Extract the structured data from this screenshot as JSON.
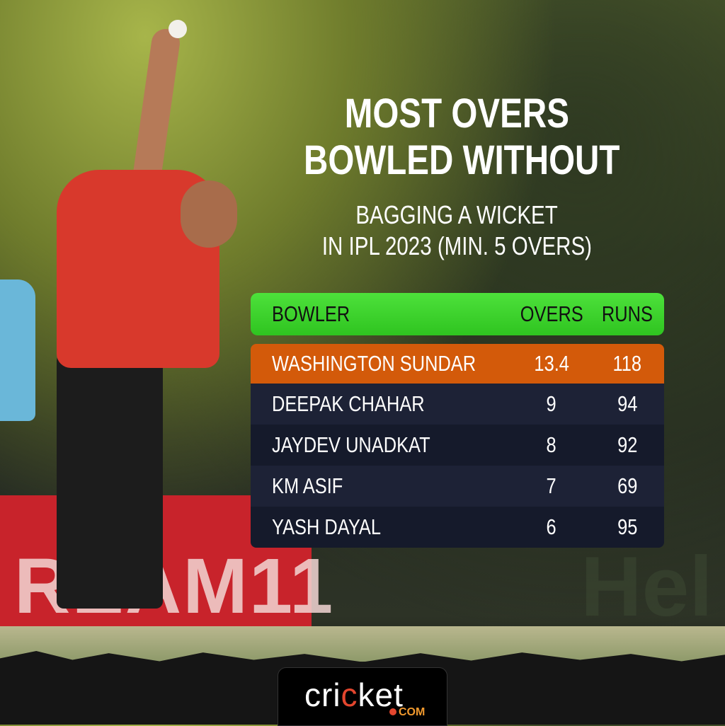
{
  "title": {
    "line1": "MOST OVERS",
    "line2": "BOWLED WITHOUT",
    "sub1": "BAGGING A WICKET",
    "sub2": "IN IPL 2023 (MIN. 5 OVERS)"
  },
  "table": {
    "headers": [
      "BOWLER",
      "OVERS",
      "RUNS"
    ],
    "rows": [
      {
        "bowler": "WASHINGTON SUNDAR",
        "overs": "13.4",
        "runs": "118"
      },
      {
        "bowler": "DEEPAK CHAHAR",
        "overs": "9",
        "runs": "94"
      },
      {
        "bowler": "JAYDEV UNADKAT",
        "overs": "8",
        "runs": "92"
      },
      {
        "bowler": "KM ASIF",
        "overs": "7",
        "runs": "69"
      },
      {
        "bowler": "YASH DAYAL",
        "overs": "6",
        "runs": "95"
      }
    ]
  },
  "colors": {
    "header": "#3fd22e",
    "highlight": "#d35a0a",
    "row_dark": "#1d2236"
  },
  "logo": {
    "text": "cricket",
    "suffix": ".com"
  }
}
